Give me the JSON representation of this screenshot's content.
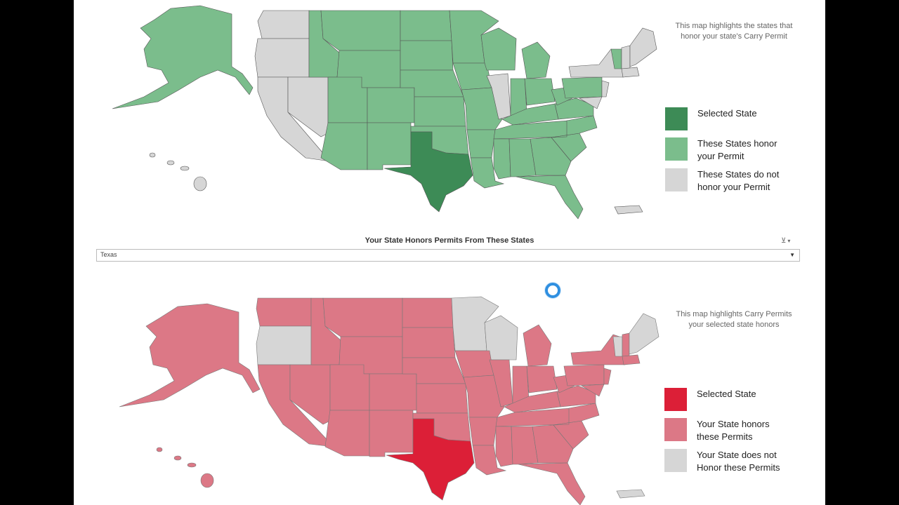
{
  "top": {
    "note_line1": "This map highlights the states that",
    "note_line2": "honor your state's Carry Permit",
    "legend": [
      {
        "label": "Selected State",
        "color": "#3d8b56"
      },
      {
        "label": "These States honor\nyour Permit",
        "color": "#7bbd8c"
      },
      {
        "label": "These States do not\nhonor your Permit",
        "color": "#d6d6d6"
      }
    ]
  },
  "slicer": {
    "title": "Your State Honors Permits From These States",
    "selected": "Texas",
    "filter_icon": "filter-clear-icon",
    "dropdown_icon": "chevron-down-icon"
  },
  "bottom": {
    "note_line1": "This map highlights Carry Permits",
    "note_line2": "your selected state honors",
    "legend": [
      {
        "label": "Selected State",
        "color": "#dc1f37"
      },
      {
        "label": "Your State honors\nthese Permits",
        "color": "#dc7886"
      },
      {
        "label": "Your State does not\nHonor these Permits",
        "color": "#d6d6d6"
      }
    ]
  },
  "loading": {
    "icon": "loading-spinner-icon"
  }
}
